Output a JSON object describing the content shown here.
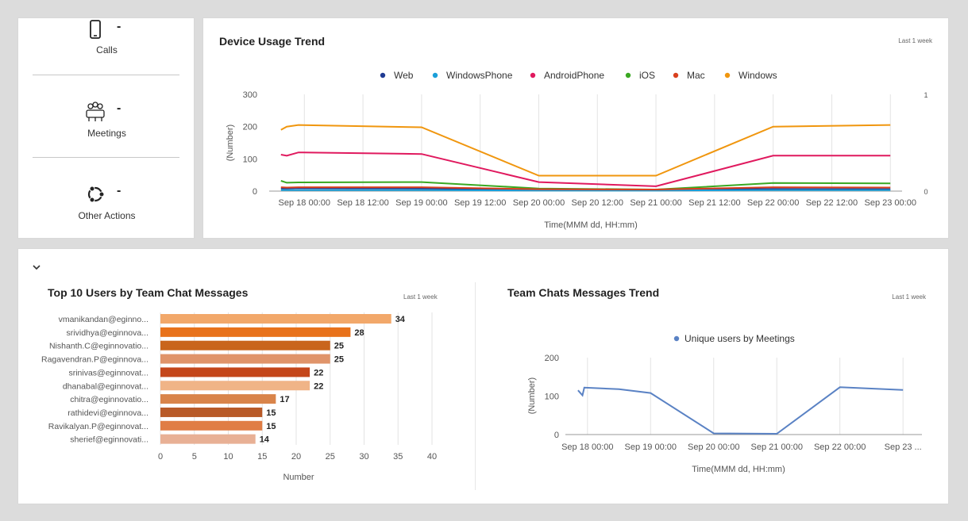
{
  "side": {
    "items": [
      {
        "label": "Calls",
        "value": "-",
        "icon": "phone-icon"
      },
      {
        "label": "Meetings",
        "value": "-",
        "icon": "meetings-icon"
      },
      {
        "label": "Other Actions",
        "value": "-",
        "icon": "ubuntu-icon"
      }
    ]
  },
  "device_usage": {
    "title": "Device Usage Trend",
    "range": "Last 1 week"
  },
  "top_users": {
    "title": "Top 10 Users by Team Chat Messages",
    "range": "Last 1 week"
  },
  "team_trend": {
    "title": "Team Chats Messages Trend",
    "range": "Last 1 week"
  },
  "chart_data": [
    {
      "type": "line",
      "title": "Device Usage Trend",
      "xlabel": "Time(MMM dd, HH:mm)",
      "ylabel": "(Number)",
      "ylim": [
        0,
        300
      ],
      "yticks": [
        "0",
        "100",
        "200",
        "300"
      ],
      "y2ticks": [
        "0",
        "1"
      ],
      "xticks": [
        "Sep 18 00:00",
        "Sep 18 12:00",
        "Sep 19 00:00",
        "Sep 19 12:00",
        "Sep 20 00:00",
        "Sep 20 12:00",
        "Sep 21 00:00",
        "Sep 21 12:00",
        "Sep 22 00:00",
        "Sep 22 12:00",
        "Sep 23 00:00"
      ],
      "legend_position": "top",
      "grid": true,
      "series": [
        {
          "name": "Web",
          "color": "#1f3a93",
          "points": [
            [
              17.8,
              8
            ],
            [
              17.85,
              8
            ],
            [
              17.95,
              9
            ],
            [
              19.0,
              8
            ],
            [
              20.0,
              5
            ],
            [
              21.0,
              5
            ],
            [
              22.0,
              7
            ],
            [
              23.0,
              6
            ]
          ]
        },
        {
          "name": "WindowsPhone",
          "color": "#1a9fd9",
          "points": [
            [
              17.8,
              3
            ],
            [
              17.85,
              3
            ],
            [
              17.95,
              3
            ],
            [
              19.0,
              3
            ],
            [
              20.0,
              2
            ],
            [
              21.0,
              2
            ],
            [
              22.0,
              3
            ],
            [
              23.0,
              3
            ]
          ]
        },
        {
          "name": "AndroidPhone",
          "color": "#e0195e",
          "points": [
            [
              17.8,
              113
            ],
            [
              17.85,
              110
            ],
            [
              17.95,
              120
            ],
            [
              19.0,
              115
            ],
            [
              20.0,
              28
            ],
            [
              21.0,
              15
            ],
            [
              22.0,
              110
            ],
            [
              23.0,
              110
            ]
          ]
        },
        {
          "name": "iOS",
          "color": "#3aa822",
          "points": [
            [
              17.8,
              32
            ],
            [
              17.85,
              26
            ],
            [
              17.95,
              27
            ],
            [
              19.0,
              28
            ],
            [
              20.0,
              8
            ],
            [
              21.0,
              5
            ],
            [
              22.0,
              25
            ],
            [
              23.0,
              24
            ]
          ]
        },
        {
          "name": "Mac",
          "color": "#d9401e",
          "points": [
            [
              17.8,
              12
            ],
            [
              17.85,
              11
            ],
            [
              17.95,
              12
            ],
            [
              19.0,
              12
            ],
            [
              20.0,
              6
            ],
            [
              21.0,
              5
            ],
            [
              22.0,
              12
            ],
            [
              23.0,
              11
            ]
          ]
        },
        {
          "name": "Windows",
          "color": "#f0960e",
          "points": [
            [
              17.8,
              190
            ],
            [
              17.85,
              200
            ],
            [
              17.95,
              205
            ],
            [
              19.0,
              198
            ],
            [
              20.0,
              48
            ],
            [
              21.0,
              48
            ],
            [
              22.0,
              200
            ],
            [
              23.0,
              205
            ]
          ]
        }
      ]
    },
    {
      "type": "bar",
      "title": "Top 10 Users by Team Chat Messages",
      "xlabel": "Number",
      "xlim": [
        0,
        40
      ],
      "xticks": [
        "0",
        "5",
        "10",
        "15",
        "20",
        "25",
        "30",
        "35",
        "40"
      ],
      "grid": true,
      "categories": [
        "vmanikandan@eginno...",
        "srividhya@eginnova...",
        "Nishanth.C@eginnovatio...",
        "Ragavendran.P@eginnova...",
        "srinivas@eginnovat...",
        "dhanabal@eginnovat...",
        "chitra@eginnovatio...",
        "rathidevi@eginnova...",
        "Ravikalyan.P@eginnovat...",
        "sherief@eginnovati..."
      ],
      "values": [
        34,
        28,
        25,
        25,
        22,
        22,
        17,
        15,
        15,
        14
      ],
      "colors": [
        "#f2a86a",
        "#e8721b",
        "#c9651c",
        "#e0946a",
        "#c4461a",
        "#f0b487",
        "#d9844a",
        "#b85a28",
        "#e07d45",
        "#e8b095"
      ]
    },
    {
      "type": "line",
      "title": "Team Chats Messages Trend",
      "xlabel": "Time(MMM dd, HH:mm)",
      "ylabel": "(Number)",
      "ylim": [
        0,
        200
      ],
      "yticks": [
        "0",
        "100",
        "200"
      ],
      "xticks": [
        "Sep 18 00:00",
        "Sep 19 00:00",
        "Sep 20 00:00",
        "Sep 21 00:00",
        "Sep 22 00:00",
        "Sep 23 ..."
      ],
      "legend_position": "top",
      "grid": true,
      "series": [
        {
          "name": "Unique users by Meetings",
          "color": "#5a82c4",
          "points": [
            [
              17.85,
              115
            ],
            [
              17.92,
              102
            ],
            [
              17.95,
              122
            ],
            [
              18.5,
              118
            ],
            [
              19.0,
              108
            ],
            [
              20.0,
              3
            ],
            [
              21.0,
              2
            ],
            [
              22.0,
              123
            ],
            [
              23.0,
              116
            ]
          ]
        }
      ]
    }
  ]
}
